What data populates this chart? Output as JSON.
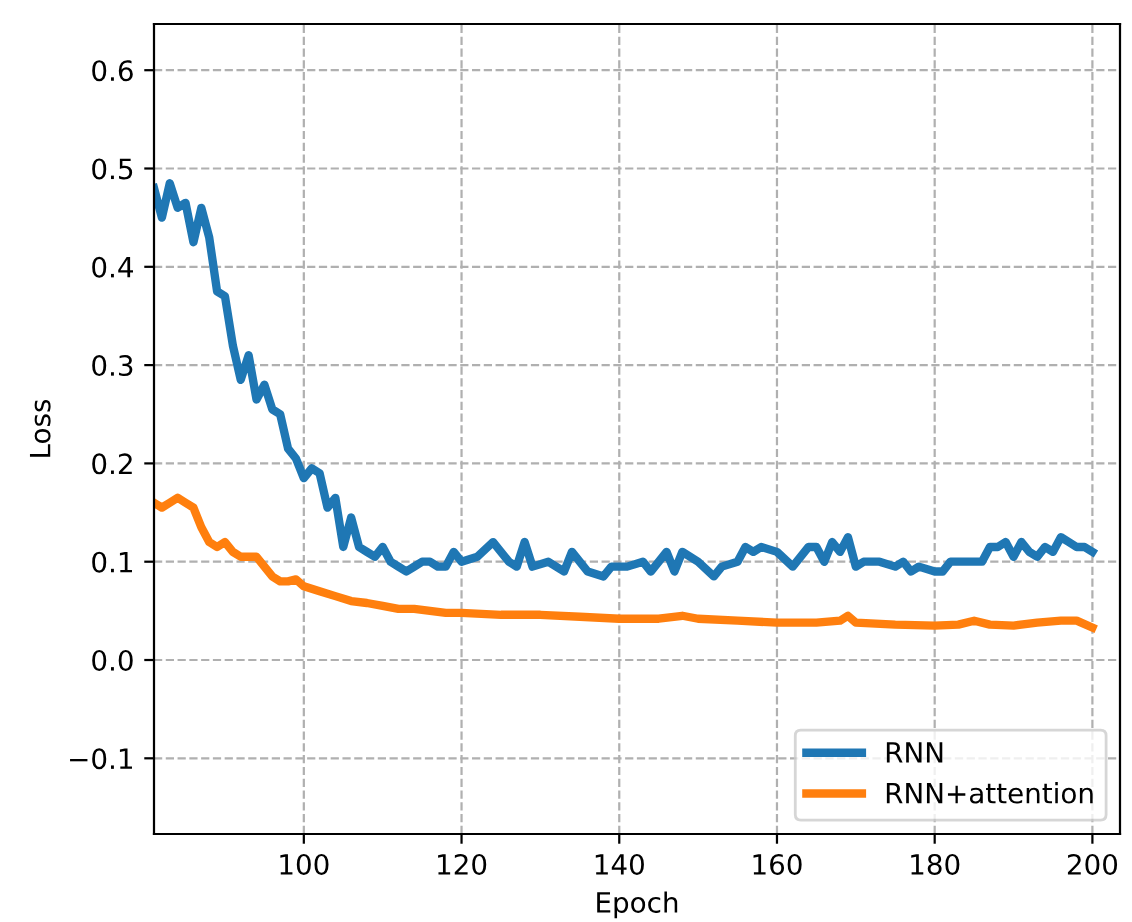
{
  "chart_data": {
    "type": "line",
    "xlabel": "Epoch",
    "ylabel": "Loss",
    "xlim": [
      81,
      203.5
    ],
    "ylim": [
      -0.177,
      0.647
    ],
    "xticks": [
      100,
      120,
      140,
      160,
      180,
      200
    ],
    "yticks": [
      {
        "value": -0.1,
        "label": "−0.1"
      },
      {
        "value": 0.0,
        "label": "0.0"
      },
      {
        "value": 0.1,
        "label": "0.1"
      },
      {
        "value": 0.2,
        "label": "0.2"
      },
      {
        "value": 0.3,
        "label": "0.3"
      },
      {
        "value": 0.4,
        "label": "0.4"
      },
      {
        "value": 0.5,
        "label": "0.5"
      },
      {
        "value": 0.6,
        "label": "0.6"
      }
    ],
    "grid": true,
    "legend": "bottom right",
    "line_style": "solid",
    "marker": "none",
    "series": [
      {
        "name": "RNN",
        "color": "#1f77b4",
        "x": [
          81,
          82,
          83,
          84,
          85,
          86,
          87,
          88,
          89,
          90,
          91,
          92,
          93,
          94,
          95,
          96,
          97,
          98,
          99,
          100,
          101,
          102,
          103,
          104,
          105,
          106,
          107,
          108,
          109,
          110,
          111,
          112,
          113,
          114,
          115,
          116,
          117,
          118,
          119,
          120,
          122,
          124,
          126,
          127,
          128,
          129,
          131,
          133,
          134,
          136,
          138,
          139,
          141,
          143,
          144,
          146,
          147,
          148,
          150,
          152,
          153,
          155,
          156,
          157,
          158,
          160,
          162,
          164,
          165,
          166,
          167,
          168,
          169,
          170,
          171,
          173,
          175,
          176,
          177,
          178,
          180,
          181,
          182,
          184,
          186,
          187,
          188,
          189,
          190,
          191,
          192,
          193,
          194,
          195,
          196,
          197,
          198,
          199,
          200
        ],
        "values": [
          0.48,
          0.45,
          0.485,
          0.46,
          0.465,
          0.425,
          0.46,
          0.43,
          0.375,
          0.37,
          0.32,
          0.285,
          0.31,
          0.265,
          0.28,
          0.255,
          0.25,
          0.215,
          0.205,
          0.185,
          0.195,
          0.19,
          0.155,
          0.165,
          0.115,
          0.145,
          0.115,
          0.11,
          0.105,
          0.115,
          0.1,
          0.095,
          0.09,
          0.095,
          0.1,
          0.1,
          0.095,
          0.095,
          0.11,
          0.1,
          0.105,
          0.12,
          0.1,
          0.095,
          0.12,
          0.095,
          0.1,
          0.09,
          0.11,
          0.09,
          0.085,
          0.095,
          0.095,
          0.1,
          0.09,
          0.11,
          0.09,
          0.11,
          0.1,
          0.085,
          0.095,
          0.1,
          0.115,
          0.11,
          0.115,
          0.11,
          0.095,
          0.115,
          0.115,
          0.1,
          0.12,
          0.11,
          0.125,
          0.095,
          0.1,
          0.1,
          0.095,
          0.1,
          0.09,
          0.095,
          0.09,
          0.09,
          0.1,
          0.1,
          0.1,
          0.115,
          0.115,
          0.12,
          0.105,
          0.12,
          0.11,
          0.105,
          0.115,
          0.11,
          0.125,
          0.12,
          0.115,
          0.115,
          0.11
        ]
      },
      {
        "name": "RNN+attention",
        "color": "#ff7f0e",
        "x": [
          81,
          82,
          83,
          84,
          85,
          86,
          87,
          88,
          89,
          90,
          91,
          92,
          93,
          94,
          95,
          96,
          97,
          98,
          99,
          100,
          102,
          104,
          106,
          108,
          110,
          112,
          114,
          116,
          118,
          120,
          125,
          130,
          135,
          140,
          145,
          148,
          150,
          155,
          160,
          165,
          168,
          169,
          170,
          175,
          180,
          183,
          185,
          187,
          190,
          193,
          196,
          198,
          200
        ],
        "values": [
          0.16,
          0.155,
          0.16,
          0.165,
          0.16,
          0.155,
          0.135,
          0.12,
          0.115,
          0.12,
          0.11,
          0.105,
          0.105,
          0.105,
          0.095,
          0.085,
          0.08,
          0.08,
          0.082,
          0.075,
          0.07,
          0.065,
          0.06,
          0.058,
          0.055,
          0.052,
          0.052,
          0.05,
          0.048,
          0.048,
          0.046,
          0.046,
          0.044,
          0.042,
          0.042,
          0.045,
          0.042,
          0.04,
          0.038,
          0.038,
          0.04,
          0.045,
          0.038,
          0.036,
          0.035,
          0.036,
          0.04,
          0.036,
          0.035,
          0.038,
          0.04,
          0.04,
          0.033
        ]
      }
    ]
  }
}
